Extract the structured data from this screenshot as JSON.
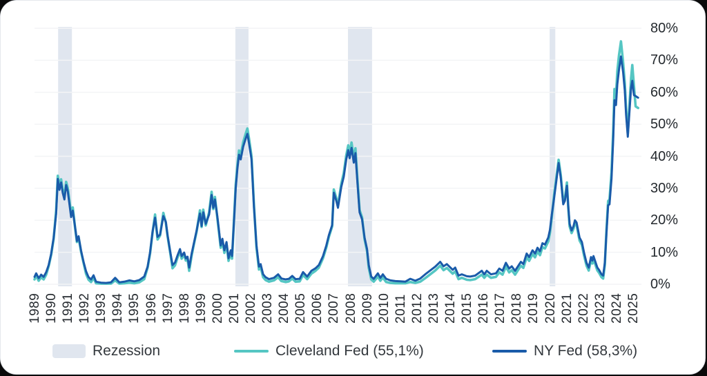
{
  "legend": {
    "recession_label": "Rezession",
    "cleveland_label": "Cleveland Fed (55,1%)",
    "nyfed_label": "NY Fed (58,3%)"
  },
  "colors": {
    "cleveland": "#55c6c3",
    "nyfed": "#1a5ba9",
    "recession_band": "#e0e6ef",
    "gridline": "#f3f4f6",
    "tick_text": "#24292e",
    "card_background": "#ffffff"
  },
  "chart_data": {
    "type": "line",
    "title": "",
    "xlabel": "",
    "ylabel": "",
    "y_axis_side": "right",
    "grid": "horizontal",
    "legend_position": "bottom",
    "ylim": [
      0,
      80
    ],
    "xlim": [
      1989.0,
      2025.5
    ],
    "y_tick_labels": [
      "0%",
      "10%",
      "20%",
      "30%",
      "40%",
      "50%",
      "60%",
      "70%",
      "80%"
    ],
    "y_tick_values": [
      0,
      10,
      20,
      30,
      40,
      50,
      60,
      70,
      80
    ],
    "x_ticks": [
      "1989",
      "1990",
      "1991",
      "1992",
      "1993",
      "1994",
      "1995",
      "1996",
      "1997",
      "1998",
      "1999",
      "2000",
      "2001",
      "2002",
      "2003",
      "2004",
      "2005",
      "2006",
      "2007",
      "2008",
      "2009",
      "2010",
      "2011",
      "2012",
      "2013",
      "2014",
      "2015",
      "2016",
      "2017",
      "2018",
      "2019",
      "2020",
      "2021",
      "2022",
      "2023",
      "2024",
      "2025"
    ],
    "recession_bands": [
      [
        1990.42,
        1991.25
      ],
      [
        2001.08,
        2001.87
      ],
      [
        2007.85,
        2009.3
      ],
      [
        2019.98,
        2020.32
      ]
    ],
    "x": [
      1989.0,
      1989.1,
      1989.25,
      1989.4,
      1989.55,
      1989.7,
      1989.85,
      1990.0,
      1990.15,
      1990.3,
      1990.4,
      1990.5,
      1990.6,
      1990.7,
      1990.8,
      1990.9,
      1991.0,
      1991.1,
      1991.2,
      1991.3,
      1991.45,
      1991.55,
      1991.65,
      1991.8,
      1991.95,
      1992.1,
      1992.25,
      1992.4,
      1992.55,
      1992.7,
      1993.0,
      1993.3,
      1993.6,
      1993.85,
      1994.1,
      1994.4,
      1994.7,
      1995.0,
      1995.3,
      1995.6,
      1995.8,
      1995.95,
      1996.1,
      1996.25,
      1996.4,
      1996.55,
      1996.75,
      1996.9,
      1997.0,
      1997.15,
      1997.3,
      1997.45,
      1997.6,
      1997.75,
      1997.85,
      1998.0,
      1998.1,
      1998.2,
      1998.3,
      1998.45,
      1998.6,
      1998.75,
      1998.95,
      1999.05,
      1999.15,
      1999.3,
      1999.5,
      1999.65,
      1999.75,
      1999.85,
      2000.0,
      2000.2,
      2000.3,
      2000.42,
      2000.55,
      2000.67,
      2000.8,
      2000.88,
      2001.0,
      2001.1,
      2001.2,
      2001.3,
      2001.4,
      2001.55,
      2001.7,
      2001.8,
      2001.9,
      2002.05,
      2002.2,
      2002.35,
      2002.5,
      2002.6,
      2002.75,
      2002.9,
      2003.1,
      2003.4,
      2003.65,
      2003.85,
      2004.1,
      2004.3,
      2004.5,
      2004.7,
      2004.95,
      2005.15,
      2005.4,
      2005.65,
      2005.9,
      2006.1,
      2006.35,
      2006.55,
      2006.7,
      2006.9,
      2007.0,
      2007.15,
      2007.25,
      2007.45,
      2007.6,
      2007.75,
      2007.87,
      2007.95,
      2008.07,
      2008.2,
      2008.3,
      2008.42,
      2008.55,
      2008.7,
      2008.85,
      2009.0,
      2009.1,
      2009.25,
      2009.4,
      2009.65,
      2009.8,
      2009.95,
      2010.15,
      2010.4,
      2010.7,
      2011.0,
      2011.3,
      2011.6,
      2011.9,
      2012.2,
      2012.5,
      2012.85,
      2013.1,
      2013.4,
      2013.6,
      2013.8,
      2014.15,
      2014.3,
      2014.5,
      2014.7,
      2015.0,
      2015.2,
      2015.5,
      2015.9,
      2016.05,
      2016.2,
      2016.45,
      2016.75,
      2016.95,
      2017.15,
      2017.35,
      2017.55,
      2017.7,
      2017.9,
      2018.1,
      2018.25,
      2018.4,
      2018.6,
      2018.75,
      2018.95,
      2019.1,
      2019.25,
      2019.4,
      2019.55,
      2019.7,
      2019.9,
      2020.0,
      2020.1,
      2020.25,
      2020.4,
      2020.52,
      2020.65,
      2020.8,
      2020.9,
      2021.02,
      2021.1,
      2021.18,
      2021.3,
      2021.42,
      2021.5,
      2021.6,
      2021.78,
      2021.92,
      2022.05,
      2022.2,
      2022.33,
      2022.47,
      2022.55,
      2022.62,
      2022.75,
      2022.85,
      2022.95,
      2023.1,
      2023.2,
      2023.3,
      2023.4,
      2023.5,
      2023.58,
      2023.7,
      2023.8,
      2023.88,
      2023.97,
      2024.05,
      2024.15,
      2024.27,
      2024.4,
      2024.5,
      2024.58,
      2024.68,
      2024.78,
      2024.88,
      2024.95,
      2025.05,
      2025.15,
      2025.3
    ],
    "series": [
      {
        "name": "Cleveland Fed",
        "current_value_label": "55,1%",
        "color": "#55c6c3",
        "values": [
          1.5,
          2.6,
          1.1,
          2.2,
          1.5,
          3.0,
          5.7,
          9.2,
          14.2,
          23.0,
          33.9,
          30.5,
          32.8,
          29.5,
          27.5,
          32.0,
          30.0,
          26.0,
          22.0,
          24.0,
          17.2,
          13.2,
          14.7,
          10.2,
          6.7,
          3.2,
          1.4,
          0.7,
          2.0,
          0.3,
          0.2,
          0.2,
          0.2,
          1.2,
          0.2,
          0.3,
          0.5,
          0.3,
          0.6,
          1.6,
          5.2,
          9.7,
          16.2,
          21.8,
          14.0,
          15.2,
          22.3,
          19.2,
          15.0,
          10.2,
          5.0,
          5.9,
          8.3,
          10.4,
          8.0,
          9.3,
          7.4,
          7.9,
          4.2,
          9.0,
          12.9,
          16.5,
          23.1,
          17.9,
          23.3,
          18.4,
          22.5,
          28.9,
          23.5,
          27.3,
          20.5,
          11.4,
          13.6,
          9.8,
          12.6,
          7.3,
          9.9,
          8.0,
          20.5,
          31.0,
          37.2,
          41.8,
          40.2,
          44.4,
          47.0,
          48.7,
          45.5,
          40.0,
          24.5,
          11.4,
          4.6,
          5.4,
          2.2,
          1.3,
          0.8,
          1.2,
          2.2,
          1.0,
          0.7,
          0.9,
          1.8,
          0.8,
          0.9,
          2.9,
          1.6,
          3.3,
          4.2,
          5.2,
          8.1,
          11.5,
          14.8,
          18.1,
          29.6,
          26.9,
          24.5,
          31.4,
          34.8,
          40.3,
          43.4,
          40.6,
          44.3,
          39.2,
          42.5,
          32.8,
          23.2,
          20.9,
          14.1,
          10.4,
          5.1,
          1.5,
          0.8,
          2.4,
          1.1,
          2.1,
          0.7,
          0.4,
          0.3,
          0.3,
          0.3,
          0.7,
          0.4,
          0.8,
          1.9,
          3.3,
          4.3,
          5.8,
          4.4,
          5.1,
          3.3,
          4.0,
          1.6,
          2.0,
          1.4,
          1.3,
          1.6,
          3.0,
          2.0,
          3.0,
          2.0,
          2.3,
          3.7,
          3.0,
          5.5,
          3.7,
          4.4,
          3.0,
          4.6,
          5.8,
          5.1,
          8.4,
          7.3,
          9.4,
          8.4,
          10.2,
          9.1,
          11.6,
          11.2,
          13.4,
          16.0,
          20.6,
          28.0,
          34.0,
          38.9,
          34.1,
          25.6,
          26.8,
          31.8,
          24.0,
          18.1,
          16.0,
          17.4,
          19.3,
          18.5,
          13.7,
          12.3,
          9.0,
          5.8,
          4.3,
          7.6,
          6.5,
          7.9,
          5.8,
          4.3,
          3.6,
          2.2,
          1.8,
          6.0,
          17.0,
          26.0,
          26.5,
          35.0,
          47.5,
          61.0,
          59.0,
          66.5,
          71.5,
          75.9,
          69.3,
          63.0,
          55.0,
          47.1,
          56.0,
          64.5,
          68.5,
          62.0,
          55.6,
          55.1
        ]
      },
      {
        "name": "NY Fed",
        "current_value_label": "58,3%",
        "color": "#1a5ba9",
        "values": [
          2.3,
          3.4,
          1.9,
          3.0,
          2.3,
          3.8,
          6.0,
          9.5,
          14.5,
          22.0,
          32.9,
          29.5,
          31.8,
          28.5,
          26.5,
          31.0,
          29.0,
          25.0,
          21.0,
          23.0,
          17.5,
          13.5,
          15.0,
          10.5,
          7.0,
          4.0,
          2.2,
          1.5,
          2.8,
          0.8,
          0.5,
          0.4,
          0.6,
          2.0,
          0.6,
          0.8,
          1.2,
          0.9,
          1.3,
          2.4,
          5.5,
          10.0,
          16.5,
          20.8,
          14.8,
          15.5,
          21.3,
          19.5,
          15.3,
          10.5,
          6.0,
          6.8,
          9.0,
          11.0,
          8.8,
          9.9,
          8.1,
          8.6,
          5.2,
          9.6,
          13.2,
          16.8,
          22.1,
          18.2,
          22.5,
          18.9,
          21.8,
          27.9,
          23.9,
          26.5,
          21.0,
          12.1,
          14.2,
          10.6,
          13.2,
          8.1,
          10.6,
          8.8,
          20.0,
          30.0,
          36.0,
          40.5,
          39.0,
          43.0,
          45.5,
          47.0,
          44.0,
          39.0,
          23.9,
          12.1,
          5.5,
          6.3,
          3.1,
          2.2,
          1.6,
          2.0,
          3.1,
          1.8,
          1.5,
          1.7,
          2.6,
          1.6,
          1.7,
          3.8,
          2.4,
          4.2,
          5.0,
          6.0,
          8.8,
          12.1,
          15.3,
          18.5,
          28.6,
          26.1,
          23.9,
          30.4,
          33.6,
          39.0,
          41.9,
          39.4,
          42.6,
          38.0,
          41.0,
          31.8,
          22.5,
          20.3,
          14.6,
          11.0,
          6.0,
          2.4,
          1.7,
          3.4,
          2.0,
          3.1,
          1.7,
          1.2,
          1.0,
          0.9,
          0.8,
          1.7,
          1.1,
          1.8,
          3.1,
          4.5,
          5.5,
          7.0,
          5.6,
          6.3,
          4.5,
          5.2,
          2.7,
          3.1,
          2.5,
          2.4,
          2.7,
          4.2,
          3.1,
          4.2,
          3.1,
          3.4,
          4.9,
          4.2,
          6.7,
          4.9,
          5.6,
          4.2,
          5.8,
          7.0,
          6.3,
          9.6,
          8.5,
          10.6,
          9.6,
          11.4,
          10.3,
          12.8,
          12.4,
          14.6,
          17.0,
          21.4,
          27.0,
          33.0,
          37.9,
          33.3,
          25.0,
          26.1,
          30.8,
          24.7,
          18.9,
          16.8,
          18.2,
          20.0,
          19.3,
          14.6,
          13.2,
          9.9,
          6.7,
          5.2,
          8.5,
          7.4,
          8.8,
          6.7,
          5.2,
          4.5,
          3.1,
          2.7,
          6.7,
          16.0,
          24.7,
          25.0,
          33.0,
          45.0,
          57.5,
          56.0,
          62.5,
          67.0,
          71.2,
          66.3,
          60.6,
          53.0,
          46.1,
          54.0,
          61.5,
          63.6,
          59.1,
          58.8,
          58.3
        ]
      }
    ]
  }
}
